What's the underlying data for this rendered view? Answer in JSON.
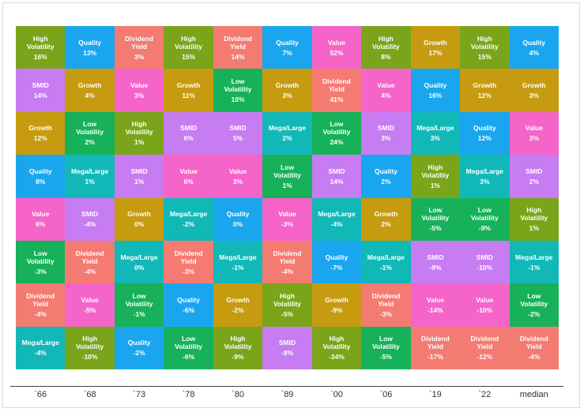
{
  "chart_data": {
    "type": "quilt",
    "columns": [
      {
        "label": "`66",
        "cells": [
          {
            "name": "High Volatility",
            "color": "#7aa51a",
            "value": 16,
            "value_label": "16%"
          },
          {
            "name": "SMID",
            "color": "#c77cf2",
            "value": 14,
            "value_label": "14%"
          },
          {
            "name": "Growth",
            "color": "#c69b0f",
            "value": 12,
            "value_label": "12%"
          },
          {
            "name": "Quality",
            "color": "#1aa6ef",
            "value": 8,
            "value_label": "8%"
          },
          {
            "name": "Value",
            "color": "#f564c8",
            "value": 6,
            "value_label": "6%"
          },
          {
            "name": "Low Volatility",
            "color": "#17b15a",
            "value": -3,
            "value_label": "-3%"
          },
          {
            "name": "Dividend Yield",
            "color": "#f47b72",
            "value": -4,
            "value_label": "-4%"
          },
          {
            "name": "Mega/Large",
            "color": "#12b8b8",
            "value": -4,
            "value_label": "-4%"
          }
        ]
      },
      {
        "label": "`68",
        "cells": [
          {
            "name": "Quality",
            "color": "#1aa6ef",
            "value": 13,
            "value_label": "13%"
          },
          {
            "name": "Growth",
            "color": "#c69b0f",
            "value": 4,
            "value_label": "4%"
          },
          {
            "name": "Low Volatility",
            "color": "#17b15a",
            "value": 2,
            "value_label": "2%"
          },
          {
            "name": "Mega/Large",
            "color": "#12b8b8",
            "value": 1,
            "value_label": "1%"
          },
          {
            "name": "SMID",
            "color": "#c77cf2",
            "value": -4,
            "value_label": "-4%"
          },
          {
            "name": "Dividend Yield",
            "color": "#f47b72",
            "value": -4,
            "value_label": "-4%"
          },
          {
            "name": "Value",
            "color": "#f564c8",
            "value": -5,
            "value_label": "-5%"
          },
          {
            "name": "High Volatility",
            "color": "#7aa51a",
            "value": -10,
            "value_label": "-10%"
          }
        ]
      },
      {
        "label": "`73",
        "cells": [
          {
            "name": "Dividend Yield",
            "color": "#f47b72",
            "value": 3,
            "value_label": "3%"
          },
          {
            "name": "Value",
            "color": "#f564c8",
            "value": 3,
            "value_label": "3%"
          },
          {
            "name": "High Volatility",
            "color": "#7aa51a",
            "value": 1,
            "value_label": "1%"
          },
          {
            "name": "SMID",
            "color": "#c77cf2",
            "value": 1,
            "value_label": "1%"
          },
          {
            "name": "Growth",
            "color": "#c69b0f",
            "value": 0,
            "value_label": "0%"
          },
          {
            "name": "Mega/Large",
            "color": "#12b8b8",
            "value": 0,
            "value_label": "0%"
          },
          {
            "name": "Low Volatility",
            "color": "#17b15a",
            "value": -1,
            "value_label": "-1%"
          },
          {
            "name": "Quality",
            "color": "#1aa6ef",
            "value": -2,
            "value_label": "-2%"
          }
        ]
      },
      {
        "label": "`78",
        "cells": [
          {
            "name": "High Volatility",
            "color": "#7aa51a",
            "value": 15,
            "value_label": "15%"
          },
          {
            "name": "Growth",
            "color": "#c69b0f",
            "value": 11,
            "value_label": "11%"
          },
          {
            "name": "SMID",
            "color": "#c77cf2",
            "value": 6,
            "value_label": "6%"
          },
          {
            "name": "Value",
            "color": "#f564c8",
            "value": 6,
            "value_label": "6%"
          },
          {
            "name": "Mega/Large",
            "color": "#12b8b8",
            "value": -2,
            "value_label": "-2%"
          },
          {
            "name": "Dividend Yield",
            "color": "#f47b72",
            "value": -3,
            "value_label": "-3%"
          },
          {
            "name": "Quality",
            "color": "#1aa6ef",
            "value": -6,
            "value_label": "-6%"
          },
          {
            "name": "Low Volatility",
            "color": "#17b15a",
            "value": -6,
            "value_label": "-6%"
          }
        ]
      },
      {
        "label": "`80",
        "cells": [
          {
            "name": "Dividend Yield",
            "color": "#f47b72",
            "value": 14,
            "value_label": "14%"
          },
          {
            "name": "Low Volatility",
            "color": "#17b15a",
            "value": 10,
            "value_label": "10%"
          },
          {
            "name": "SMID",
            "color": "#c77cf2",
            "value": 5,
            "value_label": "5%"
          },
          {
            "name": "Value",
            "color": "#f564c8",
            "value": 3,
            "value_label": "3%"
          },
          {
            "name": "Quality",
            "color": "#1aa6ef",
            "value": 0,
            "value_label": "0%"
          },
          {
            "name": "Mega/Large",
            "color": "#12b8b8",
            "value": -1,
            "value_label": "-1%"
          },
          {
            "name": "Growth",
            "color": "#c69b0f",
            "value": -2,
            "value_label": "-2%"
          },
          {
            "name": "High Volatility",
            "color": "#7aa51a",
            "value": -9,
            "value_label": "-9%"
          }
        ]
      },
      {
        "label": "`89",
        "cells": [
          {
            "name": "Quality",
            "color": "#1aa6ef",
            "value": 7,
            "value_label": "7%"
          },
          {
            "name": "Growth",
            "color": "#c69b0f",
            "value": 3,
            "value_label": "3%"
          },
          {
            "name": "Mega/Large",
            "color": "#12b8b8",
            "value": 2,
            "value_label": "2%"
          },
          {
            "name": "Low Volatility",
            "color": "#17b15a",
            "value": 1,
            "value_label": "1%"
          },
          {
            "name": "Value",
            "color": "#f564c8",
            "value": -3,
            "value_label": "-3%"
          },
          {
            "name": "Dividend Yield",
            "color": "#f47b72",
            "value": -4,
            "value_label": "-4%"
          },
          {
            "name": "High Volatility",
            "color": "#7aa51a",
            "value": -5,
            "value_label": "-5%"
          },
          {
            "name": "SMID",
            "color": "#c77cf2",
            "value": -8,
            "value_label": "-8%"
          }
        ]
      },
      {
        "label": "`00",
        "cells": [
          {
            "name": "Value",
            "color": "#f564c8",
            "value": 52,
            "value_label": "52%"
          },
          {
            "name": "Dividend Yield",
            "color": "#f47b72",
            "value": 41,
            "value_label": "41%"
          },
          {
            "name": "Low Volatility",
            "color": "#17b15a",
            "value": 24,
            "value_label": "24%"
          },
          {
            "name": "SMID",
            "color": "#c77cf2",
            "value": 14,
            "value_label": "14%"
          },
          {
            "name": "Mega/Large",
            "color": "#12b8b8",
            "value": -4,
            "value_label": "-4%"
          },
          {
            "name": "Quality",
            "color": "#1aa6ef",
            "value": -7,
            "value_label": "-7%"
          },
          {
            "name": "Growth",
            "color": "#c69b0f",
            "value": -9,
            "value_label": "-9%"
          },
          {
            "name": "High Volatility",
            "color": "#7aa51a",
            "value": -34,
            "value_label": "-34%"
          }
        ]
      },
      {
        "label": "`06",
        "cells": [
          {
            "name": "High Volatility",
            "color": "#7aa51a",
            "value": 8,
            "value_label": "8%"
          },
          {
            "name": "Value",
            "color": "#f564c8",
            "value": 4,
            "value_label": "4%"
          },
          {
            "name": "SMID",
            "color": "#c77cf2",
            "value": 3,
            "value_label": "3%"
          },
          {
            "name": "Quality",
            "color": "#1aa6ef",
            "value": 2,
            "value_label": "2%"
          },
          {
            "name": "Growth",
            "color": "#c69b0f",
            "value": 2,
            "value_label": "2%"
          },
          {
            "name": "Mega/Large",
            "color": "#12b8b8",
            "value": -1,
            "value_label": "-1%"
          },
          {
            "name": "Dividend Yield",
            "color": "#f47b72",
            "value": -3,
            "value_label": "-3%"
          },
          {
            "name": "Low Volatility",
            "color": "#17b15a",
            "value": -5,
            "value_label": "-5%"
          }
        ]
      },
      {
        "label": "`19",
        "cells": [
          {
            "name": "Growth",
            "color": "#c69b0f",
            "value": 17,
            "value_label": "17%"
          },
          {
            "name": "Quality",
            "color": "#1aa6ef",
            "value": 16,
            "value_label": "16%"
          },
          {
            "name": "Mega/Large",
            "color": "#12b8b8",
            "value": 3,
            "value_label": "3%"
          },
          {
            "name": "High Volatility",
            "color": "#7aa51a",
            "value": 1,
            "value_label": "1%"
          },
          {
            "name": "Low Volatility",
            "color": "#17b15a",
            "value": -5,
            "value_label": "-5%"
          },
          {
            "name": "SMID",
            "color": "#c77cf2",
            "value": -9,
            "value_label": "-9%"
          },
          {
            "name": "Value",
            "color": "#f564c8",
            "value": -14,
            "value_label": "-14%"
          },
          {
            "name": "Dividend Yield",
            "color": "#f47b72",
            "value": -17,
            "value_label": "-17%"
          }
        ]
      },
      {
        "label": "`22",
        "cells": [
          {
            "name": "High Volatility",
            "color": "#7aa51a",
            "value": 15,
            "value_label": "15%"
          },
          {
            "name": "Growth",
            "color": "#c69b0f",
            "value": 12,
            "value_label": "12%"
          },
          {
            "name": "Quality",
            "color": "#1aa6ef",
            "value": 12,
            "value_label": "12%"
          },
          {
            "name": "Mega/Large",
            "color": "#12b8b8",
            "value": 3,
            "value_label": "3%"
          },
          {
            "name": "Low Volatility",
            "color": "#17b15a",
            "value": -9,
            "value_label": "-9%"
          },
          {
            "name": "SMID",
            "color": "#c77cf2",
            "value": -10,
            "value_label": "-10%"
          },
          {
            "name": "Value",
            "color": "#f564c8",
            "value": -10,
            "value_label": "-10%"
          },
          {
            "name": "Dividend Yield",
            "color": "#f47b72",
            "value": -12,
            "value_label": "-12%"
          }
        ]
      },
      {
        "label": "median",
        "cells": [
          {
            "name": "Quality",
            "color": "#1aa6ef",
            "value": 4,
            "value_label": "4%"
          },
          {
            "name": "Growth",
            "color": "#c69b0f",
            "value": 3,
            "value_label": "3%"
          },
          {
            "name": "Value",
            "color": "#f564c8",
            "value": 3,
            "value_label": "3%"
          },
          {
            "name": "SMID",
            "color": "#c77cf2",
            "value": 2,
            "value_label": "2%"
          },
          {
            "name": "High Volatility",
            "color": "#7aa51a",
            "value": 1,
            "value_label": "1%"
          },
          {
            "name": "Mega/Large",
            "color": "#12b8b8",
            "value": -1,
            "value_label": "-1%"
          },
          {
            "name": "Low Volatility",
            "color": "#17b15a",
            "value": -2,
            "value_label": "-2%"
          },
          {
            "name": "Dividend Yield",
            "color": "#f47b72",
            "value": -4,
            "value_label": "-4%"
          }
        ]
      }
    ]
  }
}
